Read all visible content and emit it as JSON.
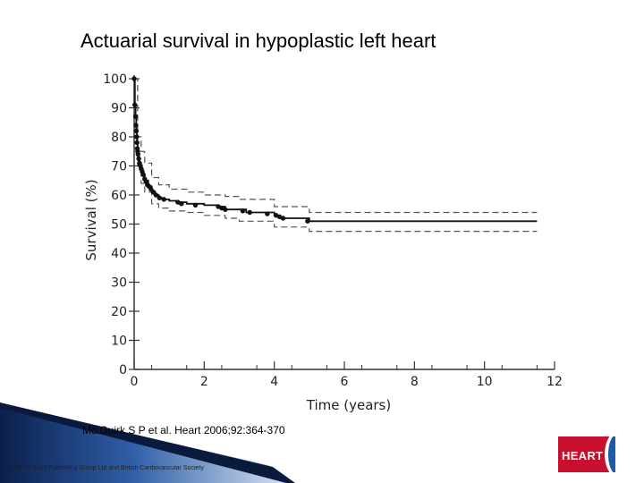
{
  "slide": {
    "title": "Actuarial survival in hypoplastic left heart",
    "citation": "Mc.Guirk S P et al. Heart 2006;92:364-370",
    "copyright": "©2006 by BMJ Publishing Group Ltd and British Cardiovascular Society",
    "logo_text": "HEART"
  },
  "chart_data": {
    "type": "line",
    "title": "",
    "xlabel": "Time (years)",
    "ylabel": "Survival (%)",
    "xlim": [
      0,
      12
    ],
    "ylim": [
      0,
      100
    ],
    "xticks": [
      0,
      2,
      4,
      6,
      8,
      10,
      12
    ],
    "yticks": [
      0,
      10,
      20,
      30,
      40,
      50,
      60,
      70,
      80,
      90,
      100
    ],
    "grid": false,
    "legend": "none",
    "series": [
      {
        "role": "estimate",
        "style": "solid",
        "x": [
          0,
          0.02,
          0.04,
          0.06,
          0.08,
          0.1,
          0.12,
          0.15,
          0.2,
          0.25,
          0.3,
          0.4,
          0.5,
          0.6,
          0.7,
          0.8,
          1.0,
          1.2,
          1.5,
          2.0,
          2.4,
          2.6,
          3.0,
          3.2,
          3.6,
          4.0,
          4.1,
          4.2,
          5.0,
          11.5
        ],
        "y": [
          100,
          91,
          87,
          82,
          78,
          75,
          73,
          71,
          69,
          67,
          65,
          63,
          61,
          60,
          59,
          58.5,
          58,
          57.5,
          57,
          56.5,
          56,
          55,
          55,
          54,
          54,
          53,
          52.5,
          52,
          51,
          51
        ]
      },
      {
        "role": "upper confidence limit",
        "style": "dashed",
        "x": [
          0,
          0.1,
          0.2,
          0.3,
          0.5,
          0.7,
          1.0,
          1.5,
          2.0,
          2.6,
          3.0,
          4.0,
          5.0,
          11.5
        ],
        "y": [
          100,
          80,
          75,
          71,
          66,
          63.5,
          62,
          61,
          60,
          59.5,
          58.5,
          56,
          54,
          54
        ]
      },
      {
        "role": "lower confidence limit",
        "style": "dashed",
        "x": [
          0,
          0.1,
          0.2,
          0.3,
          0.5,
          0.7,
          1.0,
          1.5,
          2.0,
          2.6,
          3.0,
          4.0,
          5.0,
          11.5
        ],
        "y": [
          100,
          70,
          64,
          61,
          57,
          55.5,
          54.5,
          54,
          53,
          52,
          51,
          49,
          47.5,
          47.5
        ]
      }
    ],
    "markers": {
      "x": [
        0,
        0.02,
        0.04,
        0.05,
        0.06,
        0.07,
        0.08,
        0.09,
        0.1,
        0.11,
        0.13,
        0.15,
        0.18,
        0.2,
        0.23,
        0.26,
        0.3,
        0.34,
        0.38,
        0.42,
        0.48,
        0.55,
        0.62,
        0.72,
        0.85,
        1.25,
        1.35,
        1.75,
        2.4,
        2.5,
        2.6,
        3.1,
        3.3,
        3.8,
        4.05,
        4.15,
        4.25,
        4.95
      ],
      "y": [
        100,
        91,
        87,
        84,
        82,
        80,
        78,
        76,
        75,
        74,
        72.5,
        71,
        70,
        69,
        68,
        67,
        65.5,
        64.5,
        63.5,
        63,
        62,
        61,
        60,
        59,
        58.5,
        57.5,
        57,
        56.5,
        56,
        55.5,
        55,
        54.5,
        54,
        53.5,
        53,
        52.5,
        52,
        51
      ]
    }
  }
}
